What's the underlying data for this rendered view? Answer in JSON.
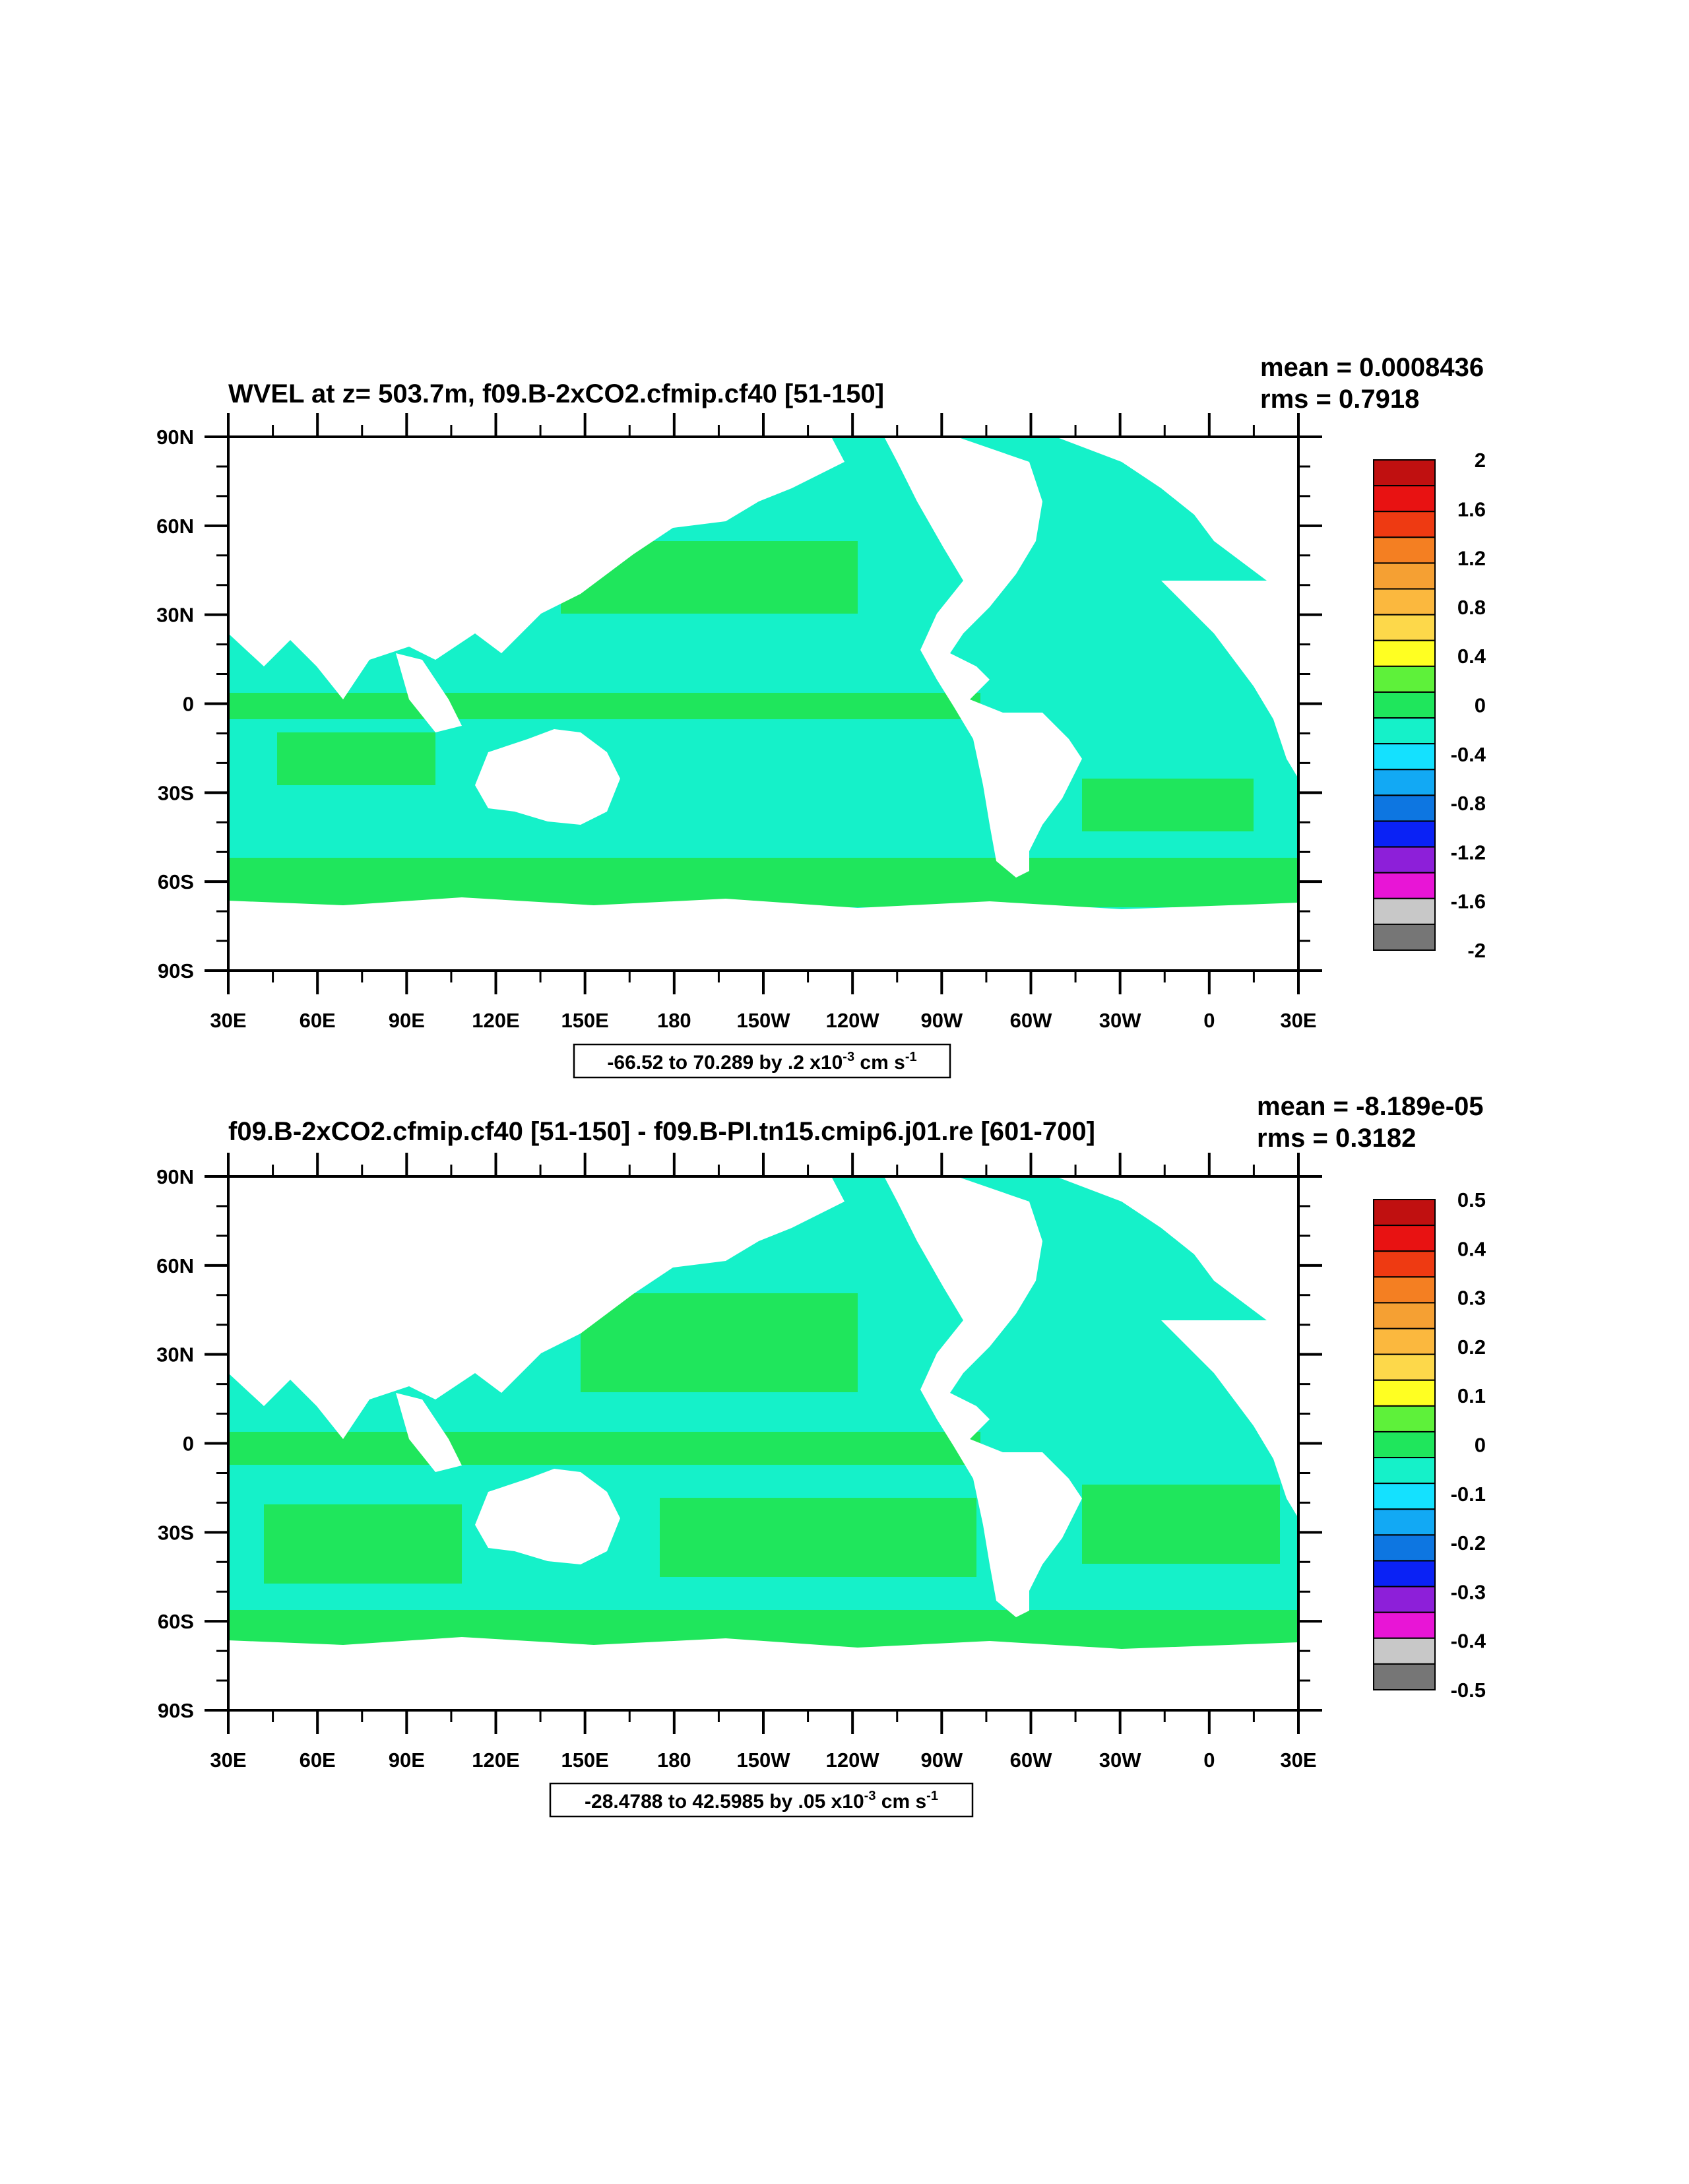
{
  "chart_data": [
    {
      "type": "heatmap",
      "title": "WVEL at z= 503.7m, f09.B-2xCO2.cfmip.cf40 [51-150]",
      "stats": [
        "mean = 0.0008436",
        "rms = 0.7918"
      ],
      "x_ticks": [
        "30E",
        "60E",
        "90E",
        "120E",
        "150E",
        "180",
        "150W",
        "120W",
        "90W",
        "60W",
        "30W",
        "0",
        "30E"
      ],
      "y_ticks": [
        "90N",
        "60N",
        "30N",
        "0",
        "30S",
        "60S",
        "90S"
      ],
      "xlim": [
        30,
        390
      ],
      "ylim": [
        -90,
        90
      ],
      "grid": false,
      "colorbar_labels": [
        "2",
        "1.6",
        "1.2",
        "0.8",
        "0.4",
        "0",
        "-0.4",
        "-0.8",
        "-1.2",
        "-1.6",
        "-2"
      ],
      "colorbar_colors": [
        "#c01010",
        "#e81212",
        "#ee3a12",
        "#f47f22",
        "#f5a033",
        "#fbb83e",
        "#fdd84a",
        "#ffff22",
        "#5ef13a",
        "#1fe65c",
        "#15f1c9",
        "#14e1ff",
        "#12a9f4",
        "#0d76e1",
        "#0a22f5",
        "#8d1fd9",
        "#e815d6",
        "#c8c8c8",
        "#767676"
      ],
      "info": "-66.52 to 70.289 by .2 x10",
      "info_exp": "-3",
      "info_units": " cm s",
      "info_units_exp": "-1",
      "legend": "right"
    },
    {
      "type": "heatmap",
      "title": "f09.B-2xCO2.cfmip.cf40 [51-150] - f09.B-PI.tn15.cmip6.j01.re [601-700]",
      "stats": [
        "mean = -8.189e-05",
        "rms = 0.3182"
      ],
      "x_ticks": [
        "30E",
        "60E",
        "90E",
        "120E",
        "150E",
        "180",
        "150W",
        "120W",
        "90W",
        "60W",
        "30W",
        "0",
        "30E"
      ],
      "y_ticks": [
        "90N",
        "60N",
        "30N",
        "0",
        "30S",
        "60S",
        "90S"
      ],
      "xlim": [
        30,
        390
      ],
      "ylim": [
        -90,
        90
      ],
      "grid": false,
      "colorbar_labels": [
        "0.5",
        "0.4",
        "0.3",
        "0.2",
        "0.1",
        "0",
        "-0.1",
        "-0.2",
        "-0.3",
        "-0.4",
        "-0.5"
      ],
      "colorbar_colors": [
        "#c01010",
        "#e81212",
        "#ee3a12",
        "#f47f22",
        "#f5a033",
        "#fbb83e",
        "#fdd84a",
        "#ffff22",
        "#5ef13a",
        "#1fe65c",
        "#15f1c9",
        "#14e1ff",
        "#12a9f4",
        "#0d76e1",
        "#0a22f5",
        "#8d1fd9",
        "#e815d6",
        "#c8c8c8",
        "#767676"
      ],
      "info": "-28.4788 to 42.5985 by .05 x10",
      "info_exp": "-3",
      "info_units": " cm s",
      "info_units_exp": "-1",
      "legend": "right"
    }
  ],
  "colors": {
    "ocean_main": "#15f1c9",
    "ocean_band": "#1fe65c",
    "land": "#ffffff"
  }
}
